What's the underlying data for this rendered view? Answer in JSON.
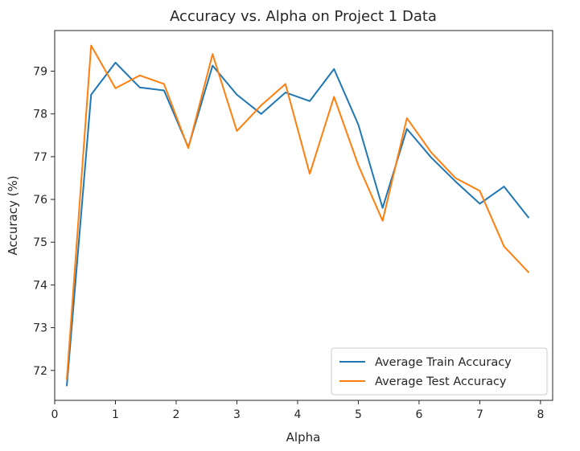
{
  "chart_data": {
    "type": "line",
    "title": "Accuracy vs. Alpha on Project 1 Data",
    "xlabel": "Alpha",
    "ylabel": "Accuracy (%)",
    "xlim": [
      -0.0,
      8.2
    ],
    "ylim": [
      71.3,
      79.95
    ],
    "xticks": [
      0,
      1,
      2,
      3,
      4,
      5,
      6,
      7,
      8
    ],
    "yticks": [
      72,
      73,
      74,
      75,
      76,
      77,
      78,
      79
    ],
    "x": [
      0.2,
      0.6,
      1.0,
      1.4,
      1.8,
      2.2,
      2.6,
      3.0,
      3.4,
      3.8,
      4.2,
      4.6,
      5.0,
      5.4,
      5.8,
      6.2,
      6.6,
      7.0,
      7.4,
      7.8
    ],
    "series": [
      {
        "name": "Average Train Accuracy",
        "color": "#1f77b4",
        "values": [
          71.65,
          78.45,
          79.2,
          78.62,
          78.55,
          77.22,
          79.13,
          78.45,
          78.0,
          78.5,
          78.3,
          79.05,
          77.75,
          75.8,
          77.65,
          76.98,
          76.42,
          75.9,
          76.3,
          75.58
        ]
      },
      {
        "name": "Average Test Accuracy",
        "color": "#ff7f0e",
        "values": [
          71.8,
          79.6,
          78.6,
          78.9,
          78.7,
          77.2,
          79.4,
          77.6,
          78.2,
          78.7,
          76.6,
          78.4,
          76.8,
          75.5,
          77.9,
          77.1,
          76.5,
          76.2,
          74.9,
          74.3
        ]
      }
    ],
    "grid": false,
    "legend_position": "lower-right"
  }
}
